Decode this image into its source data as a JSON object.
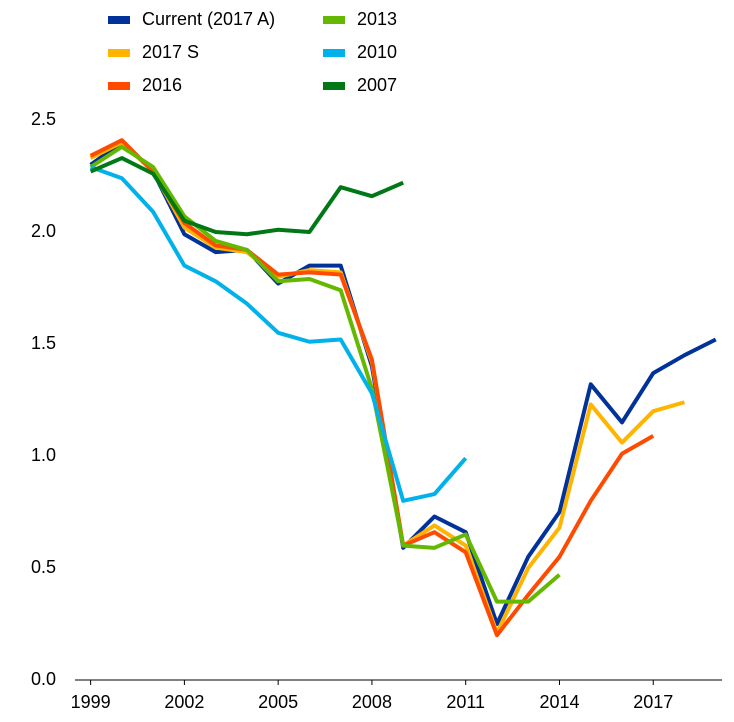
{
  "chart_data": {
    "type": "line",
    "x": [
      1999,
      2000,
      2001,
      2002,
      2003,
      2004,
      2005,
      2006,
      2007,
      2008,
      2009,
      2010,
      2011,
      2012,
      2013,
      2014,
      2015,
      2016,
      2017,
      2018,
      2019
    ],
    "series": [
      {
        "name": "Current (2017 A)",
        "color": "#003299",
        "values": [
          2.3,
          2.4,
          2.27,
          1.99,
          1.91,
          1.92,
          1.77,
          1.85,
          1.85,
          1.4,
          0.59,
          0.73,
          0.66,
          0.25,
          0.55,
          0.75,
          1.32,
          1.15,
          1.37,
          1.45,
          1.52
        ]
      },
      {
        "name": "2017 S",
        "color": "#ffb400",
        "values": [
          2.33,
          2.4,
          2.27,
          2.02,
          1.93,
          1.91,
          1.8,
          1.83,
          1.82,
          1.42,
          0.6,
          0.69,
          0.6,
          0.21,
          0.5,
          0.68,
          1.23,
          1.06,
          1.2,
          1.24,
          null
        ]
      },
      {
        "name": "2016",
        "color": "#ff4b00",
        "values": [
          2.34,
          2.41,
          2.27,
          2.04,
          1.94,
          1.92,
          1.81,
          1.82,
          1.81,
          1.43,
          0.6,
          0.66,
          0.57,
          0.2,
          0.38,
          0.55,
          0.8,
          1.01,
          1.09,
          null,
          null
        ]
      },
      {
        "name": "2013",
        "color": "#65b800",
        "values": [
          2.29,
          2.38,
          2.29,
          2.07,
          1.96,
          1.92,
          1.78,
          1.79,
          1.74,
          1.3,
          0.6,
          0.59,
          0.65,
          0.35,
          0.35,
          0.47,
          null,
          null,
          null,
          null,
          null
        ]
      },
      {
        "name": "2010",
        "color": "#00b1ea",
        "values": [
          2.29,
          2.24,
          2.09,
          1.85,
          1.78,
          1.68,
          1.55,
          1.51,
          1.52,
          1.28,
          0.8,
          0.83,
          0.99,
          null,
          null,
          null,
          null,
          null,
          null,
          null,
          null
        ]
      },
      {
        "name": "2007",
        "color": "#007816",
        "values": [
          2.27,
          2.33,
          2.26,
          2.05,
          2.0,
          1.99,
          2.01,
          2.0,
          2.2,
          2.16,
          2.22,
          null,
          null,
          null,
          null,
          null,
          null,
          null,
          null,
          null,
          null
        ]
      }
    ],
    "xlim": [
      1998.5,
      2019.2
    ],
    "xticks": [
      1999,
      2002,
      2005,
      2008,
      2011,
      2014,
      2017
    ],
    "ylim": [
      0,
      2.5
    ],
    "yticks": [
      {
        "value": 0,
        "label": "0.0"
      },
      0.5,
      {
        "value": 1,
        "label": "1.0"
      },
      1.5,
      {
        "value": 2,
        "label": "2.0"
      },
      2.5
    ],
    "grid": false,
    "legend": "top"
  }
}
